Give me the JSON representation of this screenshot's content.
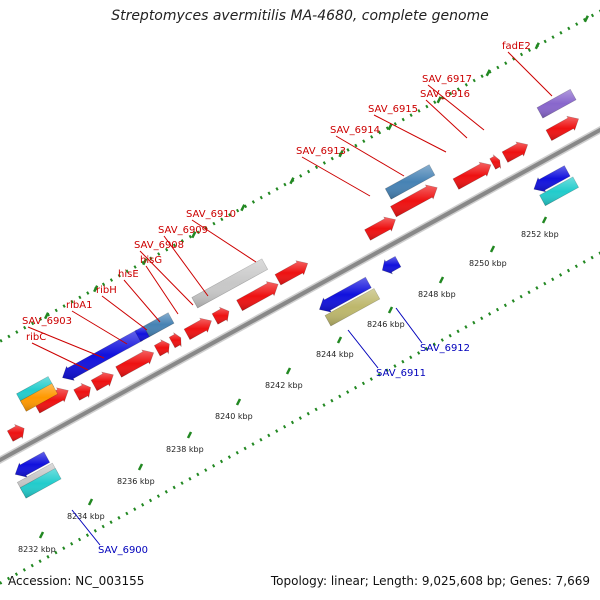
{
  "title": "Streptomyces avermitilis MA-4680, complete genome",
  "footer": {
    "accession": "Accession: NC_003155",
    "summary": "Topology: linear; Length: 9,025,608 bp; Genes: 7,669"
  },
  "scale_labels": [
    "8232 kbp",
    "8234 kbp",
    "8236 kbp",
    "8238 kbp",
    "8240 kbp",
    "8242 kbp",
    "8244 kbp",
    "8246 kbp",
    "8248 kbp",
    "8250 kbp",
    "8252 kbp"
  ],
  "gene_labels_top": [
    "ribC",
    "SAV_6903",
    "ribA1",
    "ribH",
    "hisE",
    "hisG",
    "SAV_6908",
    "SAV_6909",
    "SAV_6910",
    "SAV_6913",
    "SAV_6914",
    "SAV_6915",
    "SAV_6916",
    "SAV_6917",
    "fadE2"
  ],
  "gene_labels_bottom": [
    "SAV_6900",
    "SAV_6911",
    "SAV_6912"
  ],
  "colors": {
    "forward_cds": "#ee1111",
    "reverse_cds": "#1111dd",
    "steel": "#4682b4",
    "gray": "#c8c8c8",
    "olive": "#bdb76b",
    "cyan": "#22cccc",
    "orange": "#ff9900",
    "violet": "#8866cc",
    "backbone": "#888888",
    "ticks": "#228822"
  }
}
